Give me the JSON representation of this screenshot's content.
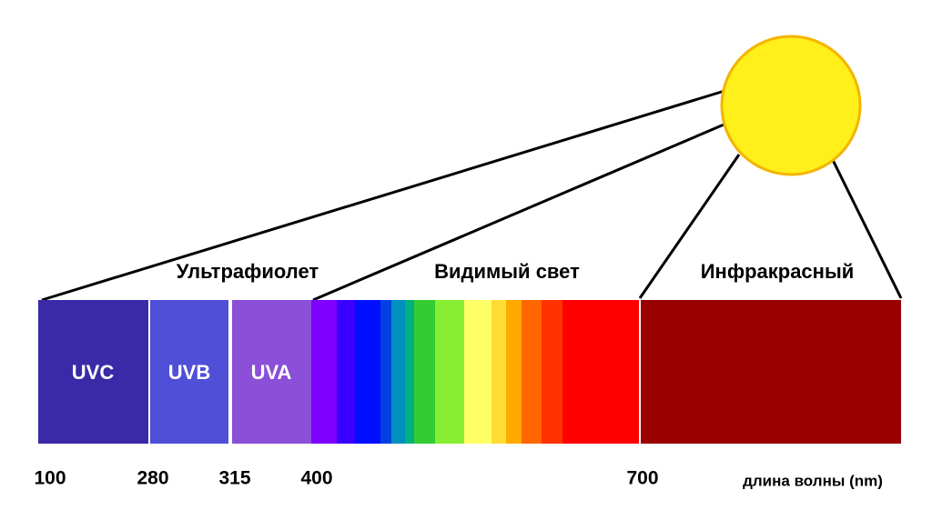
{
  "headings": {
    "ultraviolet": "Ультрафиолет",
    "visible": "Видимый свет",
    "infrared": "Инфракрасный"
  },
  "bands": {
    "uvc": "UVC",
    "uvb": "UVB",
    "uva": "UVA"
  },
  "ticks": [
    "100",
    "280",
    "315",
    "400",
    "700"
  ],
  "axis_label": "длина волны (nm)"
}
